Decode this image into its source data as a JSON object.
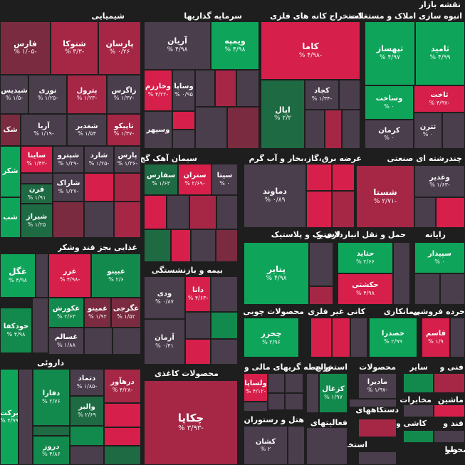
{
  "title": "نقشه بازار",
  "colors": {
    "G1": "#0ea55a",
    "G2": "#138a4d",
    "G3": "#1d6a43",
    "N": "#4a3d4c",
    "R1": "#d61f4a",
    "R2": "#a62646",
    "R3": "#7a2b40"
  },
  "sectors": [
    "شیمیایی",
    "سرمایه گذاریها",
    "استخراج کانه های فلزی",
    "انبوه سازی املاک و مستغلات",
    "سیمان آهک گچ",
    "عرضه برق،گاز،بخار و آب گرم",
    "چندرشته ای صنعتی",
    "غذایی بجز قند وشکر",
    "بیمه و بازنشستگی",
    "لاستیک و پلاستیک",
    "حمل و نقل انبارداری و",
    "رایانه",
    "محصولات چوبی",
    "کانی غیر فلزی",
    "پیمانکاری",
    "خرده فروشی",
    "داروئی",
    "محصولات کاغذی",
    "واسطه گریهای مالی و",
    "استخراج",
    "محصولات",
    "سایر",
    "فنی و",
    "هتل و رستوران",
    "فعالیتهای",
    "دستگاههای",
    "استخراج",
    "ماشین",
    "مخابرات",
    "کاشی و",
    "قند و",
    "محصو",
    "رایا",
    "زراعت"
  ],
  "tiles": [
    {
      "name": "پارسان",
      "value": "۰/۲۶ %"
    },
    {
      "name": "شتوکا",
      "value": "-۳/۳ %"
    },
    {
      "name": "فارس",
      "value": "-۱/۰۵ %"
    },
    {
      "name": "زاگرس",
      "value": "-۱/۳۷ %"
    },
    {
      "name": "پترول",
      "value": "-۱/۲۳ %"
    },
    {
      "name": "نوری",
      "value": "-۱/۲۵ %"
    },
    {
      "name": "شپدیس",
      "value": "-۱/۵ %"
    },
    {
      "name": "تاپیکو",
      "value": "-۱/۳۷ %"
    },
    {
      "name": "شغدیر",
      "value": "۱/۵۴ %"
    },
    {
      "name": "آریا",
      "value": "-۱/۱۹ %"
    },
    {
      "name": "شک",
      "value": ""
    },
    {
      "name": "پارس",
      "value": "-۱/۳۶ %"
    },
    {
      "name": "شارد",
      "value": "-۱/۲۵ %"
    },
    {
      "name": "شپترو",
      "value": "-۱/۲۹ %"
    },
    {
      "name": "ساینا",
      "value": "-۱/۴۳ %"
    },
    {
      "name": "شاراک",
      "value": "-۱/۲۷ %"
    },
    {
      "name": "قرن",
      "value": "۱/۹۱ %"
    },
    {
      "name": "شیراز",
      "value": "۱/۲۵ %"
    },
    {
      "name": "شکر",
      "value": ""
    },
    {
      "name": "شب",
      "value": ""
    },
    {
      "name": "ویمپه",
      "value": "۴/۹۸ %"
    },
    {
      "name": "آریان",
      "value": "۴/۹۸ %"
    },
    {
      "name": "وخارزم",
      "value": "-۴/۲۲ %"
    },
    {
      "name": "وساپا",
      "value": "۰/۹۵ %"
    },
    {
      "name": "وسپهر",
      "value": ""
    },
    {
      "name": "کاما",
      "value": "-۴/۹۸ %"
    },
    {
      "name": "کچاد",
      "value": "-۱/۳۴ %"
    },
    {
      "name": "اپال",
      "value": "۲/۲ %"
    },
    {
      "name": "ثامید",
      "value": "۴/۹۹ %"
    },
    {
      "name": "ثپهساز",
      "value": "۴/۹۷ %"
    },
    {
      "name": "وساخت",
      "value": "۰ %"
    },
    {
      "name": "ثاخت",
      "value": "-۴/۹۷ %"
    },
    {
      "name": "کرمان",
      "value": "۰ %"
    },
    {
      "name": "ثترن",
      "value": "۰ %"
    },
    {
      "name": "سیتا",
      "value": "۰ %"
    },
    {
      "name": "ستران",
      "value": "-۲/۶۹ %"
    },
    {
      "name": "سفارس",
      "value": "۱/۶۳ %"
    },
    {
      "name": "دماوند",
      "value": "۰/۸۹ %"
    },
    {
      "name": "شستا",
      "value": "-۲/۷۱ %"
    },
    {
      "name": "وغدیر",
      "value": "-۱/۶۳ %"
    },
    {
      "name": "غگل",
      "value": "۴/۹۸ %"
    },
    {
      "name": "غزر",
      "value": "-۴/۹۸ %"
    },
    {
      "name": "غبینو",
      "value": "۲/۶ %"
    },
    {
      "name": "غگرجی",
      "value": "۱/۵۲ %"
    },
    {
      "name": "غمینو",
      "value": "۱/۹۲ %"
    },
    {
      "name": "غکورش",
      "value": "۲/۶۳ %"
    },
    {
      "name": "خودکفا",
      "value": "۴/۹۸ %"
    },
    {
      "name": "غسالم",
      "value": "۱/۸۸ %"
    },
    {
      "name": "دانا",
      "value": "-۴/۶۳ %"
    },
    {
      "name": "ودی",
      "value": "۰/۸۷ %"
    },
    {
      "name": "آرمان",
      "value": "۰/۴۱ %"
    },
    {
      "name": "پتایر",
      "value": "۴/۹۸ %"
    },
    {
      "name": "حتاید",
      "value": "۲/۶۶ %"
    },
    {
      "name": "حکشتی",
      "value": "۴/۹۸ %"
    },
    {
      "name": "سپیدار",
      "value": "۰ %"
    },
    {
      "name": "چخزر",
      "value": "۲/۹۶ %"
    },
    {
      "name": "خصدرا",
      "value": "۲/۹۹ %"
    },
    {
      "name": "قاسم",
      "value": "۱/۹ %"
    },
    {
      "name": "برکت",
      "value": "۴/۹۹ %"
    },
    {
      "name": "دفارا",
      "value": "۲/۷۶ %"
    },
    {
      "name": "درهآور",
      "value": "-۴/۲۸ %"
    },
    {
      "name": "دتماد",
      "value": "-۱/۸۵ %"
    },
    {
      "name": "والبر",
      "value": "۲/۶۹ %"
    },
    {
      "name": "دروز",
      "value": "۴/۸۶ %"
    },
    {
      "name": "چکاپا",
      "value": "-۳/۹۳ %"
    },
    {
      "name": "ولساپا",
      "value": "-۴/۱۲ %"
    },
    {
      "name": "کزغال",
      "value": "۱/۹۷ %"
    },
    {
      "name": "مادیرا",
      "value": "-۱/۹۷ %"
    },
    {
      "name": "کشان",
      "value": "۲ %"
    }
  ]
}
